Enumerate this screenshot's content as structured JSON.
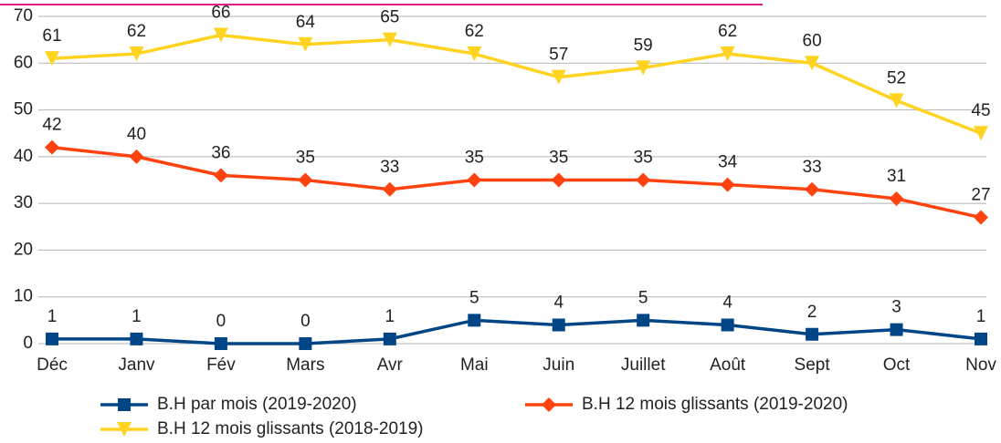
{
  "chart_data": {
    "type": "line",
    "categories": [
      "Déc",
      "Janv",
      "Fév",
      "Mars",
      "Avr",
      "Mai",
      "Juin",
      "Juillet",
      "Août",
      "Sept",
      "Oct",
      "Nov"
    ],
    "series": [
      {
        "name": "B.H par mois (2019-2020)",
        "color": "#004586",
        "marker": "square",
        "values": [
          1,
          1,
          0,
          0,
          1,
          5,
          4,
          5,
          4,
          2,
          3,
          1
        ]
      },
      {
        "name": "B.H 12 mois glissants (2019-2020)",
        "color": "#ff420e",
        "marker": "diamond",
        "values": [
          42,
          40,
          36,
          35,
          33,
          35,
          35,
          35,
          34,
          33,
          31,
          27
        ]
      },
      {
        "name": "B.H 12 mois glissants (2018-2019)",
        "color": "#ffd320",
        "marker": "triangle-down",
        "values": [
          61,
          62,
          66,
          64,
          65,
          62,
          57,
          59,
          62,
          60,
          52,
          45
        ]
      }
    ],
    "ylim": [
      0,
      70
    ],
    "yticks": [
      0,
      10,
      20,
      30,
      40,
      50,
      60,
      70
    ],
    "grid": true
  }
}
